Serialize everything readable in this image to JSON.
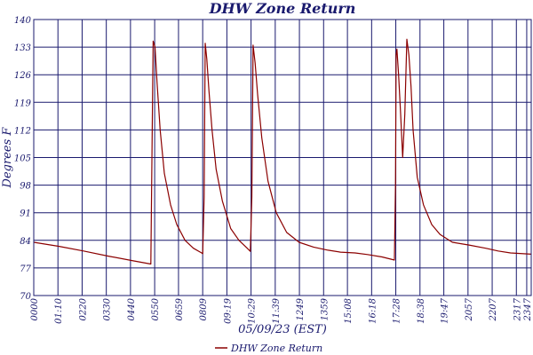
{
  "chart_data": {
    "type": "line",
    "title": "DHW Zone Return",
    "xlabel": "05/09/23 (EST)",
    "ylabel": "Degrees F",
    "ylim": [
      70,
      140
    ],
    "yticks": [
      70,
      77,
      84,
      91,
      98,
      105,
      112,
      119,
      126,
      133,
      140
    ],
    "xlim": [
      0,
      24
    ],
    "xtick_labels": [
      "0000",
      "01:10",
      "0220",
      "0330",
      "0440",
      "0550",
      "0659",
      "0809",
      "09:19",
      "10:29",
      "11:39",
      "1249",
      "1359",
      "15:08",
      "16:18",
      "17:28",
      "18:38",
      "19:47",
      "2057",
      "2207",
      "2317",
      "2347"
    ],
    "xtick_hours": [
      0,
      1.1667,
      2.3333,
      3.5,
      4.6667,
      5.8333,
      6.9833,
      8.15,
      9.3167,
      10.4833,
      11.65,
      12.8167,
      13.9833,
      15.1333,
      16.3,
      17.4667,
      18.6333,
      19.7833,
      20.95,
      22.1167,
      23.2833,
      23.7833
    ],
    "grid": true,
    "legend_position": "bottom-center",
    "series": [
      {
        "name": "DHW Zone Return",
        "color": "#8b0000",
        "x": [
          0,
          1.2,
          2.4,
          3.6,
          4.8,
          5.65,
          5.72,
          5.76,
          5.85,
          5.95,
          6.1,
          6.3,
          6.6,
          6.9,
          7.3,
          7.7,
          8.1,
          8.15,
          8.22,
          8.27,
          8.35,
          8.45,
          8.6,
          8.8,
          9.1,
          9.5,
          9.9,
          10.3,
          10.45,
          10.52,
          10.58,
          10.68,
          10.8,
          11.0,
          11.3,
          11.7,
          12.2,
          12.8,
          13.5,
          14.2,
          14.8,
          15.5,
          16.1,
          16.8,
          17.4,
          17.45,
          17.48,
          17.52,
          17.6,
          17.7,
          17.8,
          17.9,
          18.0,
          18.1,
          18.2,
          18.3,
          18.5,
          18.8,
          19.2,
          19.6,
          20.2,
          21.0,
          21.8,
          22.4,
          23.0,
          24
        ],
        "y": [
          83.5,
          82.5,
          81.3,
          80.0,
          78.8,
          78.0,
          115.0,
          134.5,
          133.0,
          124.0,
          112.0,
          101.0,
          93.0,
          88.0,
          84.0,
          82.0,
          80.8,
          80.6,
          95.0,
          134.0,
          130.0,
          122.0,
          112.0,
          102.0,
          94.0,
          87.0,
          84.0,
          82.0,
          81.2,
          95.0,
          133.5,
          129.0,
          121.0,
          110.0,
          99.0,
          91.0,
          86.0,
          83.5,
          82.3,
          81.5,
          81.0,
          80.8,
          80.4,
          79.8,
          79.0,
          98.0,
          131.0,
          132.5,
          126.0,
          116.0,
          105.0,
          116.0,
          135.0,
          131.0,
          123.0,
          112.0,
          100.0,
          93.0,
          88.0,
          85.5,
          83.5,
          82.8,
          82.0,
          81.3,
          80.8,
          80.5
        ]
      }
    ]
  }
}
